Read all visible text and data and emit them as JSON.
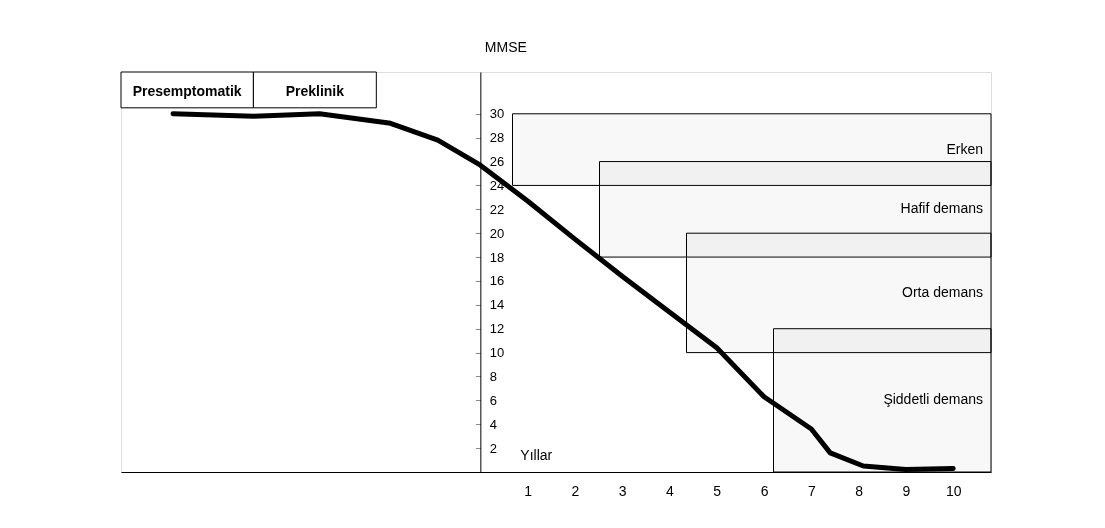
{
  "chart_data": {
    "type": "line",
    "xlabel": "Yıllar",
    "ylabel": "MMSE",
    "x": [
      -6.5,
      -4.8,
      -3.4,
      -1.9,
      -0.9,
      0,
      1,
      2,
      3,
      3.9,
      5,
      6,
      7,
      7.4,
      8.1,
      9,
      10
    ],
    "series": [
      {
        "color": "#000000",
        "values": [
          30,
          29.8,
          30,
          29.2,
          27.8,
          25.7,
          22.7,
          19.5,
          16.4,
          13.7,
          10.4,
          6.3,
          3.6,
          1.6,
          0.5,
          0.2,
          0.3
        ]
      }
    ],
    "xlim": [
      -7.6,
      10.8
    ],
    "ylim": [
      0,
      33.5
    ],
    "xticks": [
      1,
      2,
      3,
      4,
      5,
      6,
      7,
      8,
      9,
      10
    ],
    "yticks": [
      2,
      4,
      6,
      8,
      10,
      12,
      14,
      16,
      18,
      20,
      22,
      24,
      26,
      28,
      30
    ],
    "bands": [
      {
        "axis": "x",
        "from": -7.6,
        "to": -4.8,
        "label": "Presemptomatik"
      },
      {
        "axis": "x",
        "from": -4.8,
        "to": -2.2,
        "label": "Preklinik"
      },
      {
        "axis": "y",
        "from": 24,
        "to": 30,
        "label": "Erken"
      },
      {
        "axis": "y",
        "from": 18,
        "to": 26,
        "label": "Hafif demans"
      },
      {
        "axis": "y",
        "from": 10,
        "to": 20,
        "label": "Orta demans"
      },
      {
        "axis": "y",
        "from": 0,
        "to": 12,
        "label": "Şiddetli demans"
      }
    ],
    "grid": false,
    "marker": "none",
    "line_style": "solid"
  }
}
